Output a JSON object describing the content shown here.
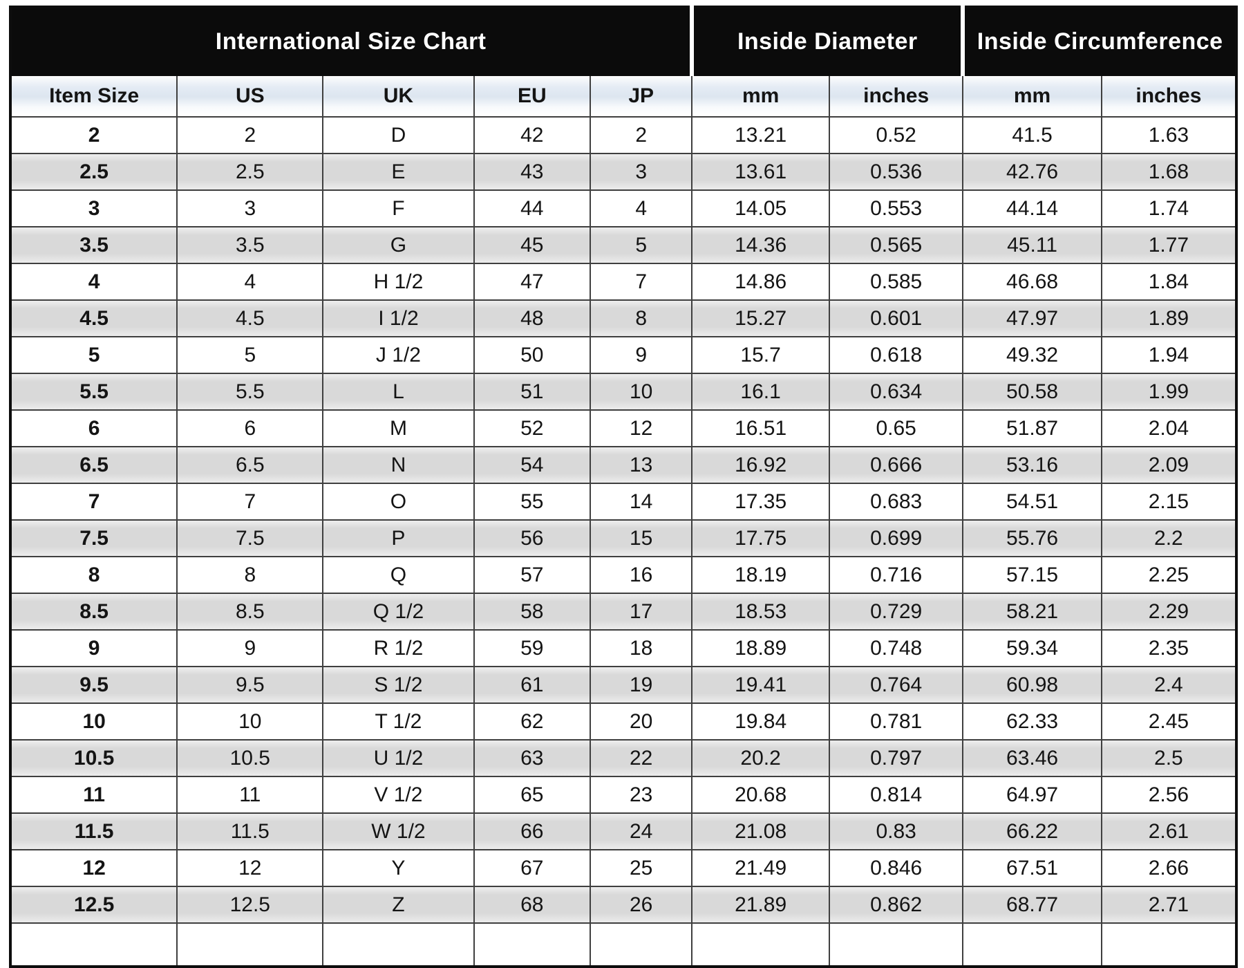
{
  "chart_data": {
    "type": "table",
    "title": "International Size Chart",
    "section_headers": [
      {
        "label": "International Size Chart",
        "colspan": 5
      },
      {
        "label": "Inside Diameter",
        "colspan": 2
      },
      {
        "label": "Inside Circumference",
        "colspan": 2
      }
    ],
    "column_labels": [
      "Item Size",
      "US",
      "UK",
      "EU",
      "JP",
      "mm",
      "inches",
      "mm",
      "inches"
    ],
    "columns_semantic": [
      "Item Size",
      "US",
      "UK",
      "EU",
      "JP",
      "Inside Diameter mm",
      "Inside Diameter inches",
      "Inside Circumference mm",
      "Inside Circumference inches"
    ],
    "rows": [
      [
        "2",
        "2",
        "D",
        "42",
        "2",
        "13.21",
        "0.52",
        "41.5",
        "1.63"
      ],
      [
        "2.5",
        "2.5",
        "E",
        "43",
        "3",
        "13.61",
        "0.536",
        "42.76",
        "1.68"
      ],
      [
        "3",
        "3",
        "F",
        "44",
        "4",
        "14.05",
        "0.553",
        "44.14",
        "1.74"
      ],
      [
        "3.5",
        "3.5",
        "G",
        "45",
        "5",
        "14.36",
        "0.565",
        "45.11",
        "1.77"
      ],
      [
        "4",
        "4",
        "H 1/2",
        "47",
        "7",
        "14.86",
        "0.585",
        "46.68",
        "1.84"
      ],
      [
        "4.5",
        "4.5",
        "I 1/2",
        "48",
        "8",
        "15.27",
        "0.601",
        "47.97",
        "1.89"
      ],
      [
        "5",
        "5",
        "J 1/2",
        "50",
        "9",
        "15.7",
        "0.618",
        "49.32",
        "1.94"
      ],
      [
        "5.5",
        "5.5",
        "L",
        "51",
        "10",
        "16.1",
        "0.634",
        "50.58",
        "1.99"
      ],
      [
        "6",
        "6",
        "M",
        "52",
        "12",
        "16.51",
        "0.65",
        "51.87",
        "2.04"
      ],
      [
        "6.5",
        "6.5",
        "N",
        "54",
        "13",
        "16.92",
        "0.666",
        "53.16",
        "2.09"
      ],
      [
        "7",
        "7",
        "O",
        "55",
        "14",
        "17.35",
        "0.683",
        "54.51",
        "2.15"
      ],
      [
        "7.5",
        "7.5",
        "P",
        "56",
        "15",
        "17.75",
        "0.699",
        "55.76",
        "2.2"
      ],
      [
        "8",
        "8",
        "Q",
        "57",
        "16",
        "18.19",
        "0.716",
        "57.15",
        "2.25"
      ],
      [
        "8.5",
        "8.5",
        "Q 1/2",
        "58",
        "17",
        "18.53",
        "0.729",
        "58.21",
        "2.29"
      ],
      [
        "9",
        "9",
        "R 1/2",
        "59",
        "18",
        "18.89",
        "0.748",
        "59.34",
        "2.35"
      ],
      [
        "9.5",
        "9.5",
        "S 1/2",
        "61",
        "19",
        "19.41",
        "0.764",
        "60.98",
        "2.4"
      ],
      [
        "10",
        "10",
        "T 1/2",
        "62",
        "20",
        "19.84",
        "0.781",
        "62.33",
        "2.45"
      ],
      [
        "10.5",
        "10.5",
        "U 1/2",
        "63",
        "22",
        "20.2",
        "0.797",
        "63.46",
        "2.5"
      ],
      [
        "11",
        "11",
        "V 1/2",
        "65",
        "23",
        "20.68",
        "0.814",
        "64.97",
        "2.56"
      ],
      [
        "11.5",
        "11.5",
        "W 1/2",
        "66",
        "24",
        "21.08",
        "0.83",
        "66.22",
        "2.61"
      ],
      [
        "12",
        "12",
        "Y",
        "67",
        "25",
        "21.49",
        "0.846",
        "67.51",
        "2.66"
      ],
      [
        "12.5",
        "12.5",
        "Z",
        "68",
        "26",
        "21.89",
        "0.862",
        "68.77",
        "2.71"
      ]
    ],
    "layout_hints": {
      "striping": "half sizes (2.5, 3.5, ...) are gray-striped rows",
      "grid": true
    }
  },
  "colors": {
    "section_header_bg": "#0b0b0b",
    "section_header_text": "#ffffff",
    "stripe": "#d9d9d9",
    "grid_line": "#3f3f3f",
    "column_header_tint": "#dde6f0",
    "outer_border": "#0d0d0d"
  }
}
